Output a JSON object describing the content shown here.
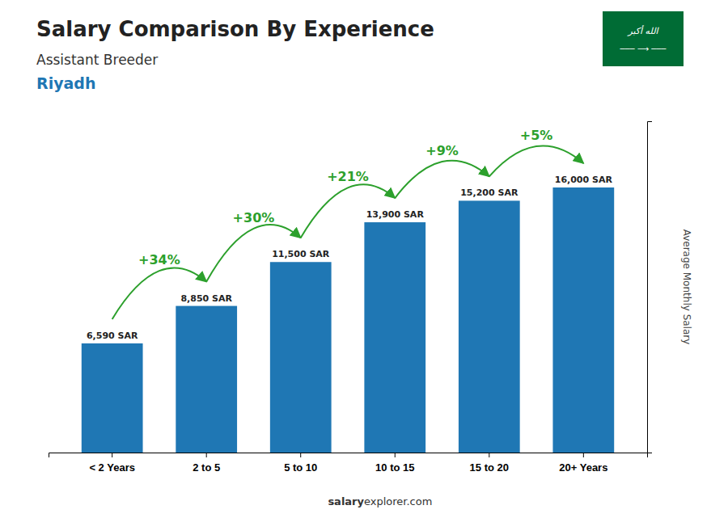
{
  "chart_data": {
    "type": "bar",
    "title": "Salary Comparison By Experience",
    "subtitle": "Assistant Breeder",
    "ylabel": "Average Monthly Salary",
    "annotations": [
      "Riyadh",
      "salary",
      "explorer.com",
      "الله أكبر",
      "─── ⟶ ───"
    ],
    "categories": [
      "< 2 Years",
      "2 to 5",
      "5 to 10",
      "10 to 15",
      "15 to 20",
      "20+ Years"
    ],
    "values": [
      6590,
      8850,
      11500,
      13900,
      15200,
      16000
    ],
    "value_labels": [
      "6,590 SAR",
      "8,850 SAR",
      "11,500 SAR",
      "13,900 SAR",
      "15,200 SAR",
      "16,000 SAR"
    ],
    "data_labels": true,
    "growth_labels": [
      "+34%",
      "+30%",
      "+21%",
      "+9%",
      "+5%"
    ],
    "ylim": [
      0,
      20000
    ],
    "grid": false,
    "tick_labels": "x"
  }
}
